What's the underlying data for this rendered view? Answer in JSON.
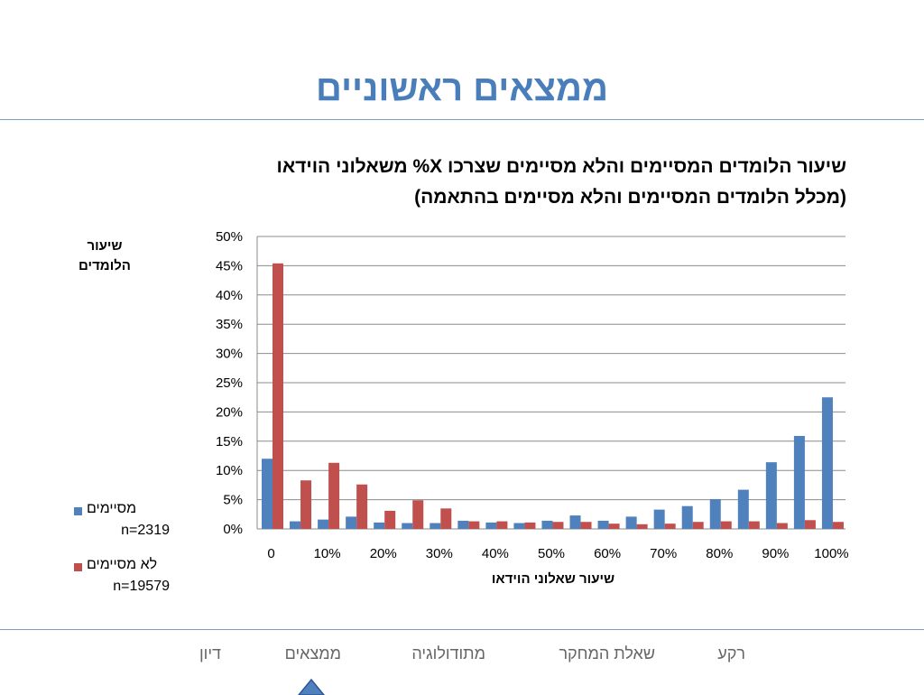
{
  "slide": {
    "title": "ממצאים ראשוניים",
    "chart_title_line1": "שיעור הלומדים המסיימים והלא מסיימים שצרכו X% משאלוני הוידאו",
    "chart_title_line2": "(מכלל הלומדים המסיימים והלא מסיימים בהתאמה)"
  },
  "nav": {
    "items": [
      "רקע",
      "שאלת המחקר",
      "מתודולוגיה",
      "ממצאים",
      "דיון"
    ],
    "active": "ממצאים"
  },
  "legend": [
    {
      "name": "מסיימים",
      "n": "n=2319",
      "color": "#4f81bd"
    },
    {
      "name": "לא מסיימים",
      "n": "n=19579",
      "color": "#c0504d"
    }
  ],
  "chart_data": {
    "type": "bar",
    "title": "שיעור הלומדים המסיימים והלא מסיימים שצרכו X% משאלוני הוידאו",
    "subtitle": "(מכלל הלומדים המסיימים והלא מסיימים בהתאמה)",
    "xlabel": "שיעור שאלוני הוידאו",
    "ylabel": "שיעור הלומדים",
    "ylim": [
      0,
      50
    ],
    "yticks": [
      "0%",
      "5%",
      "10%",
      "15%",
      "20%",
      "25%",
      "30%",
      "35%",
      "40%",
      "45%",
      "50%"
    ],
    "xtick_labels": [
      "0",
      "10%",
      "20%",
      "30%",
      "40%",
      "50%",
      "60%",
      "70%",
      "80%",
      "90%",
      "100%"
    ],
    "grid": true,
    "legend_position": "left",
    "series": [
      {
        "name": "מסיימים",
        "color": "#4f81bd",
        "values": [
          12.0,
          1.3,
          1.6,
          2.1,
          1.1,
          1.0,
          1.0,
          1.4,
          1.1,
          1.0,
          1.4,
          2.3,
          1.4,
          2.1,
          3.3,
          3.9,
          5.1,
          6.7,
          11.4,
          15.9,
          22.5
        ]
      },
      {
        "name": "לא מסיימים",
        "color": "#c0504d",
        "values": [
          45.4,
          8.3,
          11.3,
          7.6,
          3.1,
          4.9,
          3.5,
          1.3,
          1.3,
          1.1,
          1.2,
          1.2,
          0.9,
          0.8,
          0.9,
          1.2,
          1.3,
          1.3,
          1.0,
          1.5,
          1.2
        ]
      }
    ]
  }
}
